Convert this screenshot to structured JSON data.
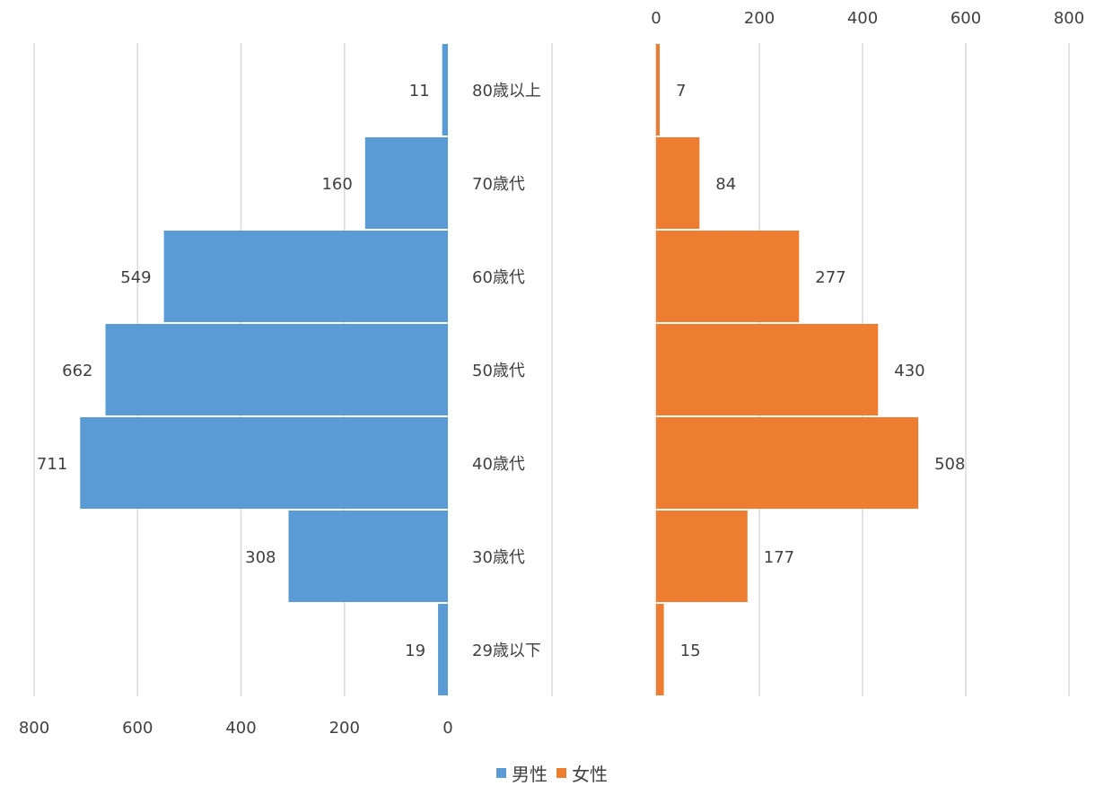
{
  "chart_data": {
    "type": "bar",
    "orientation": "horizontal",
    "layout": "population-pyramid",
    "title": "",
    "categories": [
      "80歳以上",
      "70歳代",
      "60歳代",
      "50歳代",
      "40歳代",
      "30歳代",
      "29歳以下"
    ],
    "series": [
      {
        "name": "男性",
        "color": "#5b9bd5",
        "side": "left",
        "values": [
          11,
          160,
          549,
          662,
          711,
          308,
          19
        ]
      },
      {
        "name": "女性",
        "color": "#ed7d31",
        "side": "right",
        "values": [
          7,
          84,
          277,
          430,
          508,
          177,
          15
        ]
      }
    ],
    "xlim": [
      0,
      800
    ],
    "left_ticks": [
      "800",
      "600",
      "400",
      "200",
      "0"
    ],
    "right_ticks": [
      "0",
      "200",
      "400",
      "600",
      "800"
    ],
    "left_axis_position": "bottom",
    "right_axis_position": "top",
    "grid": true,
    "legend_position": "bottom"
  }
}
